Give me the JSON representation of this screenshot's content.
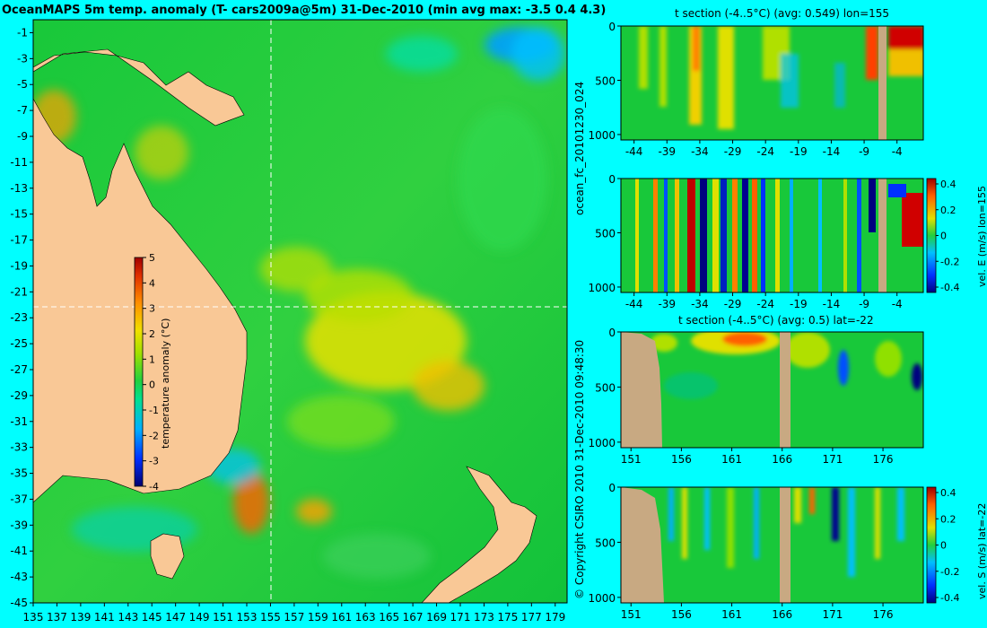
{
  "page": {
    "main_title": "OceanMAPS 5m temp. anomaly (T- cars2009a@5m) 31-Dec-2010 (min avg max: -3.5 0.4 4.3)",
    "copyright_text": "© Copyright CSIRO 2010  31-Dec-2010 09:48:30",
    "run_label": "ocean_fc_20101230_024"
  },
  "palette": {
    "land": "#f9c896",
    "section_land": "#c8a982",
    "ocean_green": "#16c83a",
    "warm_yellow": "#f0e000",
    "warm_orange": "#ff9000",
    "hot_red": "#c00000",
    "cool_blue": "#0050ff",
    "deep_navy": "#000070",
    "background": "#00ffff"
  },
  "chart_data": [
    {
      "id": "map",
      "type": "heatmap",
      "title": "OceanMAPS 5m temp. anomaly (T- cars2009a@5m) 31-Dec-2010 (min avg max: -3.5 0.4 4.3)",
      "x": [
        135,
        137,
        139,
        141,
        143,
        145,
        147,
        149,
        151,
        153,
        155,
        157,
        159,
        161,
        163,
        165,
        167,
        169,
        171,
        173,
        175,
        177,
        179
      ],
      "y": [
        -1,
        -3,
        -5,
        -7,
        -9,
        -11,
        -13,
        -15,
        -17,
        -19,
        -21,
        -23,
        -25,
        -27,
        -29,
        -31,
        -33,
        -35,
        -37,
        -39,
        -41,
        -43,
        -45
      ],
      "xlim": [
        135,
        180
      ],
      "ylim": [
        -45,
        0
      ],
      "crosshair": {
        "lon": 155,
        "lat": -22
      },
      "stats": {
        "min": -3.5,
        "avg": 0.4,
        "max": 4.3
      },
      "colorbar": {
        "label": "temperature anomaly (°C)",
        "ticks": [
          5,
          4,
          3,
          2,
          1,
          0,
          -1,
          -2,
          -3,
          -4
        ],
        "range": [
          -4,
          5
        ]
      }
    },
    {
      "id": "t-section-lon",
      "type": "heatmap",
      "title": "t section (-4..5°C) (avg: 0.549) lon=155",
      "x_ticks": [
        -44,
        -39,
        -34,
        -29,
        -24,
        -19,
        -14,
        -9,
        -4
      ],
      "xlim": [
        -46,
        0
      ],
      "y_ticks": [
        0,
        500,
        1000
      ],
      "ylim": [
        1050,
        0
      ],
      "avg": 0.549
    },
    {
      "id": "vel-e-section",
      "type": "heatmap",
      "title": "",
      "x_ticks": [
        -44,
        -39,
        -34,
        -29,
        -24,
        -19,
        -14,
        -9,
        -4
      ],
      "xlim": [
        -46,
        0
      ],
      "y_ticks": [
        0,
        500,
        1000
      ],
      "ylim": [
        1050,
        0
      ],
      "colorbar": {
        "label": "vel. E (m/s) lon=155",
        "ticks": [
          "0.4",
          "0.2",
          "0",
          "-0.2",
          "-0.4"
        ],
        "range": [
          -0.4,
          0.4
        ]
      }
    },
    {
      "id": "t-section-lat",
      "type": "heatmap",
      "title": "t section (-4..5°C) (avg: 0.5) lat=-22",
      "x_ticks": [
        151,
        156,
        161,
        166,
        171,
        176
      ],
      "xlim": [
        150,
        180
      ],
      "y_ticks": [
        0,
        500,
        1000
      ],
      "ylim": [
        1050,
        0
      ],
      "avg": 0.5
    },
    {
      "id": "vel-s-section",
      "type": "heatmap",
      "title": "",
      "x_ticks": [
        151,
        156,
        161,
        166,
        171,
        176
      ],
      "xlim": [
        150,
        180
      ],
      "y_ticks": [
        0,
        500,
        1000
      ],
      "ylim": [
        1050,
        0
      ],
      "colorbar": {
        "label": "vel. S (m/s) lat=-22",
        "ticks": [
          "0.4",
          "0.2",
          "0",
          "-0.2",
          "-0.4"
        ],
        "range": [
          -0.4,
          0.4
        ]
      }
    }
  ]
}
